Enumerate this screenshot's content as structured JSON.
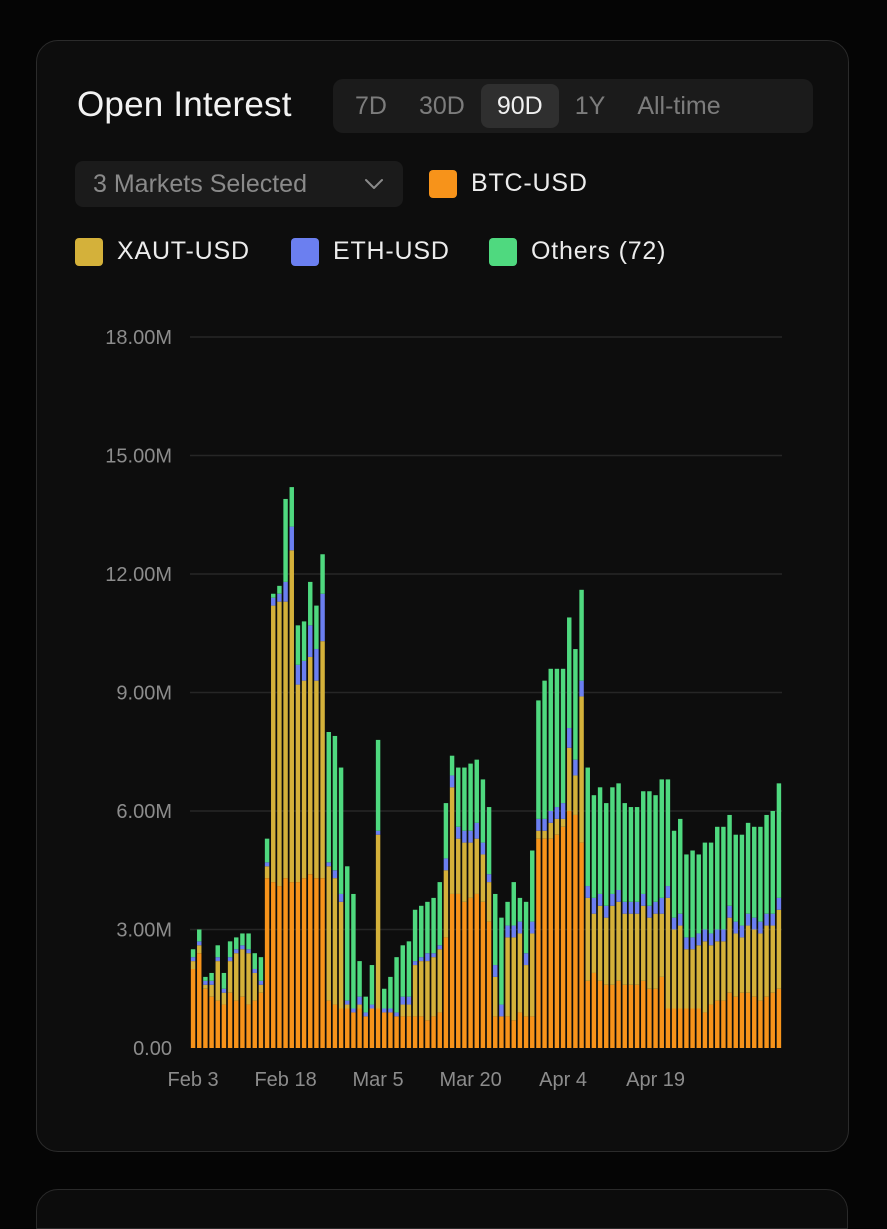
{
  "card": {
    "title": "Open Interest",
    "ranges": [
      "7D",
      "30D",
      "90D",
      "1Y",
      "All-time"
    ],
    "active_range": "90D",
    "markets_select": "3 Markets Selected"
  },
  "legend": [
    {
      "label": "BTC-USD",
      "color": "#f7931a"
    },
    {
      "label": "XAUT-USD",
      "color": "#d4b13a"
    },
    {
      "label": "ETH-USD",
      "color": "#6b7ff0"
    },
    {
      "label": "Others (72)",
      "color": "#4fd97f"
    }
  ],
  "chart_data": {
    "type": "bar",
    "stacked": true,
    "y_tick_labels": [
      "0.00",
      "3.00M",
      "6.00M",
      "9.00M",
      "12.00M",
      "15.00M",
      "18.00M"
    ],
    "x_tick_labels": [
      "Feb 3",
      "Feb 18",
      "Mar 5",
      "Mar 20",
      "Apr 4",
      "Apr 19"
    ],
    "ylim": [
      0,
      18000000
    ],
    "grid": true,
    "legend_placement": "top",
    "series": [
      {
        "name": "BTC-USD",
        "color": "#f7931a",
        "values": [
          2.0,
          2.4,
          1.5,
          1.3,
          1.2,
          1.1,
          1.4,
          1.2,
          1.3,
          1.1,
          1.2,
          1.4,
          4.3,
          4.2,
          4.1,
          4.3,
          4.2,
          4.2,
          4.3,
          4.4,
          4.3,
          4.3,
          1.2,
          1.1,
          1.0,
          1.0,
          0.9,
          1.0,
          0.8,
          1.0,
          1.0,
          0.9,
          0.9,
          0.8,
          0.8,
          0.8,
          0.8,
          0.8,
          0.7,
          0.8,
          0.9,
          2.8,
          3.9,
          3.9,
          3.7,
          3.8,
          3.9,
          3.7,
          3.2,
          0.8,
          0.8,
          0.8,
          0.7,
          0.9,
          0.8,
          0.8,
          5.3,
          5.3,
          5.3,
          5.4,
          5.6,
          6.0,
          5.9,
          5.2,
          1.7,
          1.9,
          1.7,
          1.6,
          1.6,
          1.7,
          1.6,
          1.6,
          1.6,
          1.7,
          1.5,
          1.5,
          1.8,
          1.0,
          1.0,
          1.0,
          1.0,
          1.0,
          1.0,
          0.9,
          1.1,
          1.2,
          1.2,
          1.4,
          1.3,
          1.4,
          1.4,
          1.3,
          1.2,
          1.3,
          1.4,
          1.5
        ]
      },
      {
        "name": "XAUT-USD",
        "color": "#d4b13a",
        "values": [
          0.2,
          0.2,
          0.1,
          0.3,
          1.0,
          0.3,
          0.8,
          1.2,
          1.2,
          1.3,
          0.7,
          0.2,
          0.3,
          7.0,
          7.2,
          7.0,
          8.4,
          5.0,
          5.0,
          5.5,
          5.0,
          6.0,
          3.4,
          3.2,
          2.7,
          0.1,
          0.0,
          0.1,
          0.0,
          0.0,
          4.4,
          0.0,
          0.0,
          0.0,
          0.3,
          0.3,
          1.3,
          1.4,
          1.5,
          1.5,
          1.6,
          1.7,
          2.7,
          1.4,
          1.5,
          1.4,
          1.4,
          1.2,
          1.0,
          1.0,
          0.0,
          2.0,
          2.1,
          2.0,
          1.3,
          2.1,
          0.2,
          0.2,
          0.4,
          0.4,
          0.2,
          1.6,
          1.0,
          3.7,
          2.1,
          1.5,
          1.9,
          1.7,
          2.0,
          2.0,
          1.8,
          1.8,
          1.8,
          1.9,
          1.8,
          1.9,
          1.6,
          2.8,
          2.0,
          2.1,
          1.5,
          1.5,
          1.6,
          1.8,
          1.5,
          1.5,
          1.5,
          1.9,
          1.6,
          1.4,
          1.7,
          1.7,
          1.7,
          1.8,
          1.7,
          2.0
        ]
      },
      {
        "name": "ETH-USD",
        "color": "#6b7ff0",
        "values": [
          0.1,
          0.1,
          0.1,
          0.1,
          0.1,
          0.1,
          0.1,
          0.1,
          0.1,
          0.1,
          0.1,
          0.1,
          0.1,
          0.2,
          0.2,
          0.5,
          0.6,
          0.5,
          0.5,
          0.8,
          0.8,
          1.2,
          0.1,
          0.2,
          0.2,
          0.1,
          0.1,
          0.2,
          0.1,
          0.1,
          0.1,
          0.1,
          0.1,
          0.1,
          0.2,
          0.2,
          0.1,
          0.1,
          0.2,
          0.1,
          0.1,
          0.3,
          0.3,
          0.3,
          0.3,
          0.3,
          0.4,
          0.3,
          0.2,
          0.3,
          0.3,
          0.3,
          0.3,
          0.3,
          0.3,
          0.3,
          0.3,
          0.3,
          0.3,
          0.3,
          0.4,
          0.5,
          0.4,
          0.4,
          0.3,
          0.4,
          0.3,
          0.3,
          0.3,
          0.3,
          0.3,
          0.3,
          0.3,
          0.3,
          0.3,
          0.3,
          0.4,
          0.3,
          0.3,
          0.3,
          0.3,
          0.3,
          0.3,
          0.3,
          0.3,
          0.3,
          0.3,
          0.3,
          0.3,
          0.3,
          0.3,
          0.3,
          0.3,
          0.3,
          0.3,
          0.3
        ]
      },
      {
        "name": "Others (72)",
        "color": "#4fd97f",
        "values": [
          0.2,
          0.3,
          0.1,
          0.2,
          0.3,
          0.4,
          0.4,
          0.3,
          0.3,
          0.4,
          0.4,
          0.6,
          0.6,
          0.1,
          0.2,
          2.1,
          1.0,
          1.0,
          1.0,
          1.1,
          1.1,
          1.0,
          3.3,
          3.4,
          3.2,
          3.4,
          2.9,
          0.9,
          0.4,
          1.0,
          2.3,
          0.5,
          0.8,
          1.4,
          1.3,
          1.4,
          1.3,
          1.3,
          1.3,
          1.4,
          1.6,
          1.4,
          0.5,
          1.5,
          1.6,
          1.7,
          1.6,
          1.6,
          1.7,
          1.8,
          2.2,
          0.6,
          1.1,
          0.6,
          1.3,
          1.8,
          3.0,
          3.5,
          3.6,
          3.5,
          3.4,
          2.8,
          2.8,
          2.3,
          3.0,
          2.6,
          2.7,
          2.6,
          2.7,
          2.7,
          2.5,
          2.4,
          2.4,
          2.6,
          2.9,
          2.7,
          3.0,
          2.7,
          2.2,
          2.4,
          2.1,
          2.2,
          2.0,
          2.2,
          2.3,
          2.6,
          2.6,
          2.3,
          2.2,
          2.3,
          2.3,
          2.3,
          2.4,
          2.5,
          2.6,
          2.9
        ]
      }
    ]
  }
}
